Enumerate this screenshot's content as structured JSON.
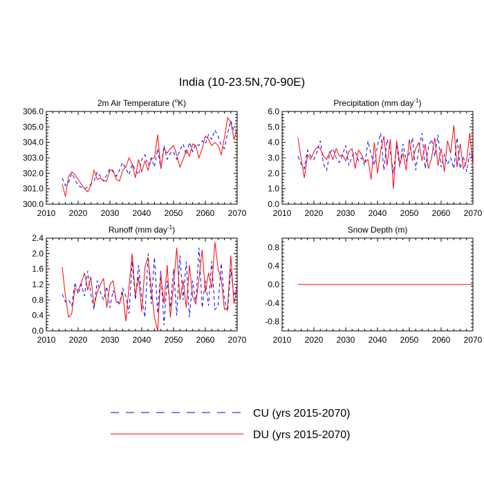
{
  "title": "India (10-23.5N,70-90E)",
  "legend": {
    "cu_label": "CU (yrs 2015-2070)",
    "du_label": "DU (yrs 2015-2070)",
    "cu_color": "#0000ff",
    "du_color": "#ff0000"
  },
  "chart_data": [
    {
      "type": "line",
      "title": "2m Air Temperature (°K)",
      "title_main": "2m Air Temperature (",
      "title_unit": "o",
      "title_tail": "K)",
      "xlim": [
        2010,
        2070
      ],
      "ylim": [
        300,
        306
      ],
      "xticks": [
        2010,
        2020,
        2030,
        2040,
        2050,
        2060,
        2070
      ],
      "yticks": [
        300,
        301,
        302,
        303,
        304,
        305,
        306
      ],
      "ytick_labels": [
        "300.0",
        "301.0",
        "302.0",
        "303.0",
        "304.0",
        "305.0",
        "306.0"
      ],
      "x": [
        2015,
        2016,
        2017,
        2018,
        2019,
        2020,
        2021,
        2022,
        2023,
        2024,
        2025,
        2026,
        2027,
        2028,
        2029,
        2030,
        2031,
        2032,
        2033,
        2034,
        2035,
        2036,
        2037,
        2038,
        2039,
        2040,
        2041,
        2042,
        2043,
        2044,
        2045,
        2046,
        2047,
        2048,
        2049,
        2050,
        2051,
        2052,
        2053,
        2054,
        2055,
        2056,
        2057,
        2058,
        2059,
        2060,
        2061,
        2062,
        2063,
        2064,
        2065,
        2066,
        2067,
        2068,
        2069,
        2070
      ],
      "series": [
        {
          "name": "CU",
          "values": [
            301.7,
            301.2,
            301.4,
            302.0,
            301.6,
            301.2,
            301.1,
            301.0,
            301.1,
            301.3,
            301.5,
            302.1,
            301.8,
            301.5,
            301.9,
            302.3,
            302.1,
            301.8,
            302.2,
            302.7,
            302.3,
            301.9,
            302.6,
            302.2,
            301.9,
            302.9,
            303.2,
            302.5,
            303.0,
            302.4,
            303.6,
            302.3,
            303.8,
            302.9,
            303.3,
            303.4,
            302.9,
            303.5,
            303.9,
            303.2,
            304.0,
            303.4,
            303.9,
            303.8,
            304.1,
            303.9,
            304.5,
            304.2,
            304.8,
            304.4,
            303.8,
            303.6,
            304.6,
            305.4,
            304.7,
            304.8
          ]
        },
        {
          "name": "DU",
          "values": [
            301.3,
            300.5,
            301.8,
            302.1,
            301.9,
            301.6,
            301.3,
            301.0,
            300.8,
            301.2,
            302.2,
            301.6,
            301.7,
            301.5,
            301.5,
            302.2,
            302.2,
            301.6,
            301.5,
            302.2,
            302.4,
            303.0,
            302.6,
            301.7,
            302.9,
            302.1,
            302.8,
            302.2,
            302.9,
            303.0,
            304.5,
            302.3,
            303.6,
            303.3,
            303.6,
            303.8,
            303.2,
            302.4,
            302.9,
            303.5,
            303.1,
            303.9,
            303.8,
            303.0,
            303.6,
            304.4,
            304.2,
            303.8,
            304.0,
            303.8,
            303.2,
            304.3,
            305.6,
            305.3,
            304.2,
            304.8
          ]
        }
      ]
    },
    {
      "type": "line",
      "title": "Precipitation (mm day⁻¹)",
      "title_main": "Precipitation (mm day",
      "title_unit": "-1",
      "title_tail": ")",
      "xlim": [
        2010,
        2070
      ],
      "ylim": [
        0,
        6
      ],
      "xticks": [
        2010,
        2020,
        2030,
        2040,
        2050,
        2060,
        2070
      ],
      "yticks": [
        0,
        1,
        2,
        3,
        4,
        5,
        6
      ],
      "ytick_labels": [
        "0.0",
        "1.0",
        "2.0",
        "3.0",
        "4.0",
        "5.0",
        "6.0"
      ],
      "x": [
        2015,
        2016,
        2017,
        2018,
        2019,
        2020,
        2021,
        2022,
        2023,
        2024,
        2025,
        2026,
        2027,
        2028,
        2029,
        2030,
        2031,
        2032,
        2033,
        2034,
        2035,
        2036,
        2037,
        2038,
        2039,
        2040,
        2041,
        2042,
        2043,
        2044,
        2045,
        2046,
        2047,
        2048,
        2049,
        2050,
        2051,
        2052,
        2053,
        2054,
        2055,
        2056,
        2057,
        2058,
        2059,
        2060,
        2061,
        2062,
        2063,
        2064,
        2065,
        2066,
        2067,
        2068,
        2069,
        2070
      ],
      "series": [
        {
          "name": "CU",
          "values": [
            3.1,
            2.6,
            2.3,
            3.5,
            3.1,
            2.9,
            3.4,
            4.1,
            2.6,
            2.2,
            3.3,
            3.6,
            3.0,
            2.7,
            3.2,
            3.8,
            2.5,
            3.1,
            3.4,
            2.8,
            3.0,
            2.5,
            4.1,
            3.2,
            2.5,
            3.8,
            4.6,
            2.2,
            4.2,
            3.5,
            2.0,
            3.8,
            2.4,
            3.9,
            2.8,
            3.3,
            4.3,
            2.2,
            3.6,
            4.6,
            2.3,
            3.7,
            4.2,
            3.1,
            4.5,
            2.4,
            3.2,
            2.6,
            3.0,
            2.3,
            4.3,
            2.3,
            3.1,
            2.1,
            3.3,
            2.9
          ]
        },
        {
          "name": "DU",
          "values": [
            4.3,
            2.9,
            1.7,
            3.2,
            2.9,
            3.4,
            3.7,
            3.6,
            3.1,
            2.9,
            3.4,
            2.9,
            3.6,
            3.1,
            3.2,
            2.8,
            3.4,
            3.6,
            2.3,
            3.5,
            3.2,
            2.7,
            2.9,
            1.6,
            4.0,
            2.0,
            3.5,
            4.4,
            2.5,
            4.2,
            1.0,
            4.1,
            2.6,
            3.3,
            2.2,
            4.2,
            2.8,
            3.6,
            4.0,
            2.8,
            3.9,
            2.3,
            3.0,
            4.3,
            2.5,
            3.6,
            2.1,
            4.1,
            3.3,
            5.1,
            2.4,
            3.9,
            2.3,
            2.8,
            4.6,
            2.5
          ]
        }
      ]
    },
    {
      "type": "line",
      "title": "Runoff (mm day⁻¹)",
      "title_main": "Runoff (mm day",
      "title_unit": "-1",
      "title_tail": ")",
      "xlim": [
        2010,
        2070
      ],
      "ylim": [
        0,
        2.4
      ],
      "xticks": [
        2010,
        2020,
        2030,
        2040,
        2050,
        2060,
        2070
      ],
      "yticks": [
        0,
        0.4,
        0.8,
        1.2,
        1.6,
        2.0,
        2.4
      ],
      "ytick_labels": [
        "0.0",
        "0.4",
        "0.8",
        "1.2",
        "1.6",
        "2.0",
        "2.4"
      ],
      "x": [
        2015,
        2016,
        2017,
        2018,
        2019,
        2020,
        2021,
        2022,
        2023,
        2024,
        2025,
        2026,
        2027,
        2028,
        2029,
        2030,
        2031,
        2032,
        2033,
        2034,
        2035,
        2036,
        2037,
        2038,
        2039,
        2040,
        2041,
        2042,
        2043,
        2044,
        2045,
        2046,
        2047,
        2048,
        2049,
        2050,
        2051,
        2052,
        2053,
        2054,
        2055,
        2056,
        2057,
        2058,
        2059,
        2060,
        2061,
        2062,
        2063,
        2064,
        2065,
        2066,
        2067,
        2068,
        2069,
        2070
      ],
      "series": [
        {
          "name": "CU",
          "values": [
            0.95,
            0.75,
            0.8,
            0.65,
            1.25,
            0.95,
            1.2,
            0.9,
            1.55,
            0.95,
            0.55,
            1.3,
            1.0,
            0.8,
            1.15,
            0.6,
            1.05,
            0.8,
            0.7,
            1.1,
            0.9,
            0.45,
            1.8,
            0.8,
            1.7,
            0.85,
            0.35,
            2.0,
            0.7,
            1.9,
            0.45,
            1.55,
            0.15,
            1.3,
            0.6,
            1.6,
            0.4,
            1.95,
            0.8,
            1.8,
            0.35,
            1.3,
            0.7,
            2.15,
            0.6,
            1.3,
            0.65,
            1.8,
            0.55,
            0.65,
            1.75,
            0.8,
            0.5,
            1.6,
            0.9,
            1.15
          ]
        },
        {
          "name": "DU",
          "values": [
            1.65,
            0.9,
            0.35,
            0.45,
            1.1,
            1.05,
            1.25,
            1.5,
            1.05,
            1.4,
            0.65,
            1.0,
            1.2,
            1.35,
            0.6,
            1.2,
            1.3,
            0.75,
            0.7,
            1.0,
            0.25,
            1.15,
            2.0,
            0.9,
            1.4,
            0.5,
            1.65,
            1.9,
            1.1,
            0.35,
            0.0,
            1.45,
            0.7,
            1.7,
            0.35,
            1.2,
            2.15,
            0.8,
            1.3,
            0.6,
            1.7,
            0.9,
            0.7,
            1.35,
            2.1,
            1.0,
            1.5,
            1.1,
            2.3,
            1.6,
            1.35,
            0.55,
            0.6,
            1.95,
            0.7,
            1.1
          ]
        }
      ]
    },
    {
      "type": "line",
      "title": "Snow Depth (m)",
      "title_main": "Snow Depth (m)",
      "title_unit": "",
      "title_tail": "",
      "xlim": [
        2010,
        2070
      ],
      "ylim": [
        -1.0,
        1.0
      ],
      "xticks": [
        2010,
        2020,
        2030,
        2040,
        2050,
        2060,
        2070
      ],
      "yticks": [
        -0.8,
        -0.4,
        0.0,
        0.4,
        0.8
      ],
      "ytick_labels": [
        "-0.8",
        "-0.4",
        "0.0",
        "0.4",
        "0.8"
      ],
      "x": [
        2015,
        2070
      ],
      "series": [
        {
          "name": "CU",
          "values": [
            0.0,
            0.0
          ]
        },
        {
          "name": "DU",
          "values": [
            0.0,
            0.0
          ]
        }
      ]
    }
  ]
}
